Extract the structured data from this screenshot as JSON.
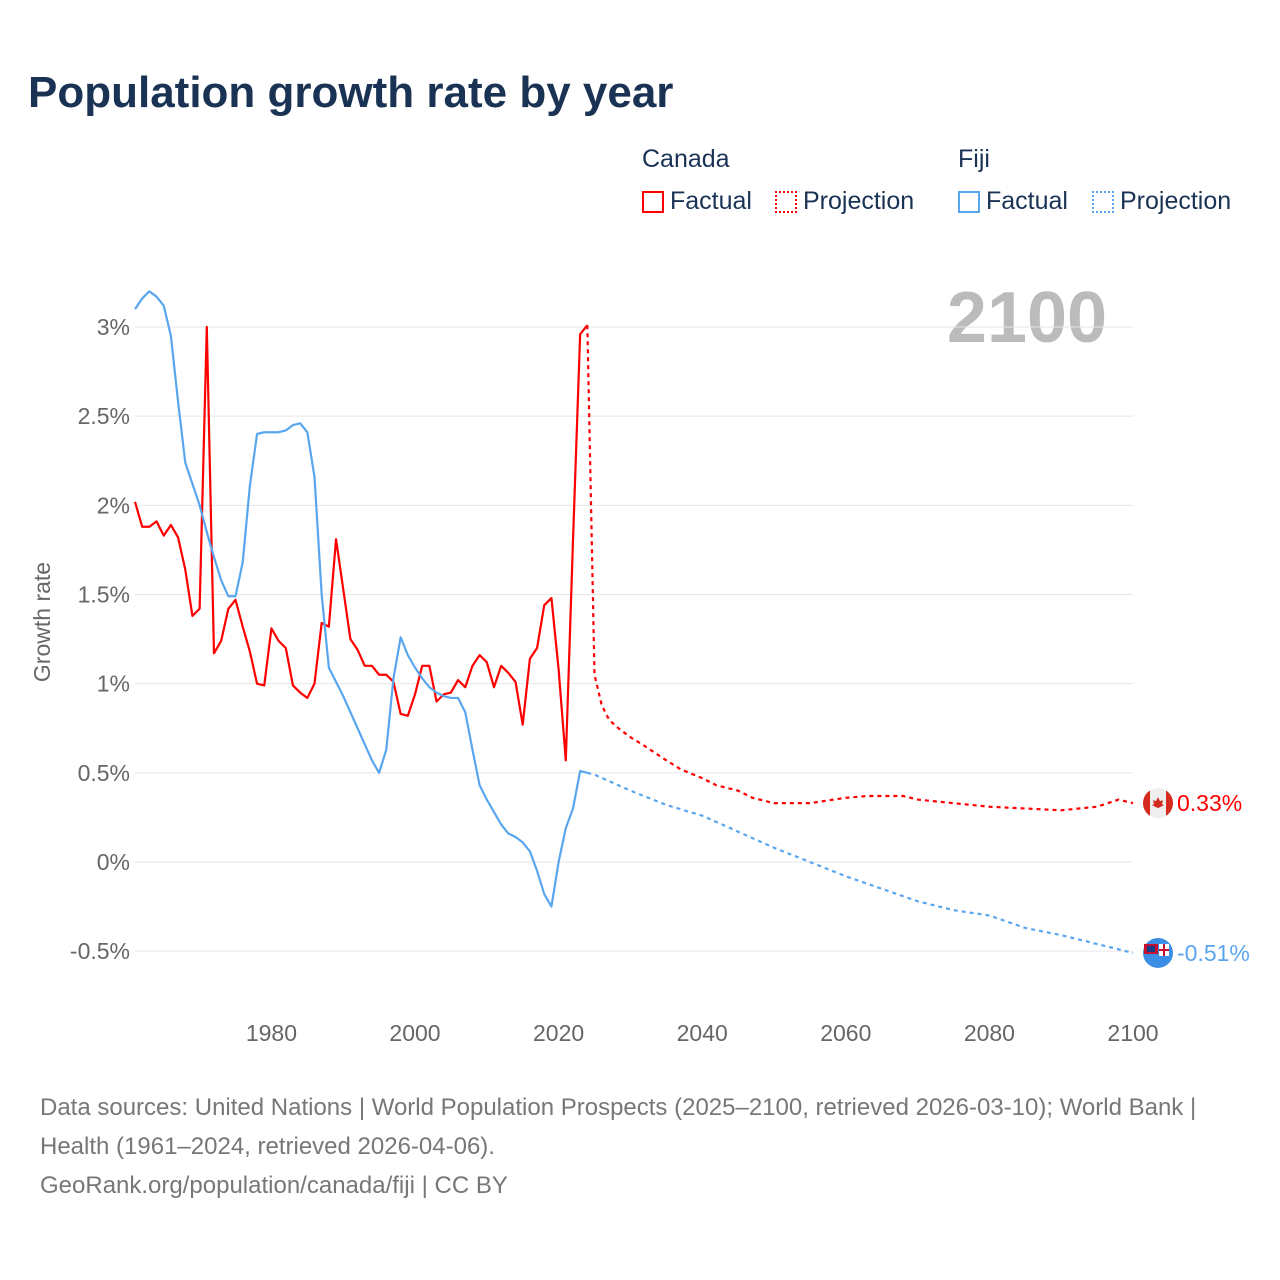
{
  "title": "Population growth rate by year",
  "legend": {
    "groups": [
      {
        "country": "Canada",
        "color": "#ff0000",
        "factual": "Factual",
        "projection": "Projection"
      },
      {
        "country": "Fiji",
        "color": "#5aa6ee",
        "factual": "Factual",
        "projection": "Projection"
      }
    ]
  },
  "footer": {
    "sources": "Data sources: United Nations | World Population Prospects (2025–2100, retrieved 2026-03-10); World Bank | Health (1961–2024, retrieved 2026-04-06).",
    "credit": "GeoRank.org/population/canada/fiji | CC BY"
  },
  "chart_data": {
    "type": "line",
    "ylabel": "Growth rate",
    "year_label": "2100",
    "xlim": [
      1961,
      2100
    ],
    "ylim": [
      -0.5,
      3
    ],
    "xticks": [
      1980,
      2000,
      2020,
      2040,
      2060,
      2080,
      2100
    ],
    "yticks": [
      -0.5,
      0,
      0.5,
      1,
      1.5,
      2,
      2.5,
      3
    ],
    "ytick_labels": [
      "-0.5%",
      "0%",
      "0.5%",
      "1%",
      "1.5%",
      "2%",
      "2.5%",
      "3%"
    ],
    "series": [
      {
        "name": "Canada",
        "color": "#ff0000",
        "end_label": "0.33%",
        "factual": {
          "x": [
            1961,
            1962,
            1963,
            1964,
            1965,
            1966,
            1967,
            1968,
            1969,
            1970,
            1971,
            1972,
            1973,
            1974,
            1975,
            1976,
            1977,
            1978,
            1979,
            1980,
            1981,
            1982,
            1983,
            1984,
            1985,
            1986,
            1987,
            1988,
            1989,
            1990,
            1991,
            1992,
            1993,
            1994,
            1995,
            1996,
            1997,
            1998,
            1999,
            2000,
            2001,
            2002,
            2003,
            2004,
            2005,
            2006,
            2007,
            2008,
            2009,
            2010,
            2011,
            2012,
            2013,
            2014,
            2015,
            2016,
            2017,
            2018,
            2019,
            2020,
            2021,
            2022,
            2023,
            2024
          ],
          "y": [
            2.02,
            1.88,
            1.88,
            1.91,
            1.83,
            1.89,
            1.82,
            1.64,
            1.38,
            1.42,
            3.0,
            1.17,
            1.24,
            1.42,
            1.47,
            1.32,
            1.18,
            1.0,
            0.99,
            1.31,
            1.24,
            1.2,
            0.99,
            0.95,
            0.92,
            1.0,
            1.34,
            1.32,
            1.81,
            1.53,
            1.25,
            1.19,
            1.1,
            1.1,
            1.05,
            1.05,
            1.01,
            0.83,
            0.82,
            0.94,
            1.1,
            1.1,
            0.9,
            0.94,
            0.95,
            1.02,
            0.98,
            1.1,
            1.16,
            1.12,
            0.98,
            1.1,
            1.06,
            1.01,
            0.77,
            1.14,
            1.2,
            1.44,
            1.48,
            1.08,
            0.57,
            1.8,
            2.96,
            3.01
          ]
        },
        "projection": {
          "x": [
            2024,
            2025,
            2026,
            2027,
            2028,
            2030,
            2032,
            2035,
            2037,
            2040,
            2042,
            2045,
            2047,
            2050,
            2055,
            2060,
            2063,
            2068,
            2070,
            2075,
            2080,
            2085,
            2090,
            2095,
            2098,
            2100
          ],
          "y": [
            3.01,
            1.05,
            0.88,
            0.8,
            0.76,
            0.7,
            0.65,
            0.57,
            0.52,
            0.47,
            0.43,
            0.4,
            0.36,
            0.33,
            0.33,
            0.36,
            0.37,
            0.37,
            0.35,
            0.33,
            0.31,
            0.3,
            0.29,
            0.31,
            0.35,
            0.33
          ]
        }
      },
      {
        "name": "Fiji",
        "color": "#5aa6ee",
        "end_label": "-0.51%",
        "factual": {
          "x": [
            1961,
            1962,
            1963,
            1964,
            1965,
            1966,
            1967,
            1968,
            1969,
            1970,
            1971,
            1972,
            1973,
            1974,
            1975,
            1976,
            1977,
            1978,
            1979,
            1980,
            1981,
            1982,
            1983,
            1984,
            1985,
            1986,
            1987,
            1988,
            1989,
            1990,
            1991,
            1992,
            1993,
            1994,
            1995,
            1996,
            1997,
            1998,
            1999,
            2000,
            2001,
            2002,
            2003,
            2004,
            2005,
            2006,
            2007,
            2008,
            2009,
            2010,
            2011,
            2012,
            2013,
            2014,
            2015,
            2016,
            2017,
            2018,
            2019,
            2020,
            2021,
            2022,
            2023,
            2024
          ],
          "y": [
            3.1,
            3.16,
            3.2,
            3.17,
            3.12,
            2.95,
            2.58,
            2.24,
            2.12,
            2.0,
            1.85,
            1.71,
            1.58,
            1.49,
            1.49,
            1.68,
            2.11,
            2.4,
            2.41,
            2.41,
            2.41,
            2.42,
            2.45,
            2.46,
            2.41,
            2.16,
            1.5,
            1.09,
            1.01,
            0.93,
            0.84,
            0.75,
            0.66,
            0.57,
            0.5,
            0.63,
            1.03,
            1.26,
            1.16,
            1.09,
            1.03,
            0.98,
            0.95,
            0.93,
            0.92,
            0.92,
            0.84,
            0.63,
            0.43,
            0.35,
            0.28,
            0.21,
            0.16,
            0.14,
            0.11,
            0.06,
            -0.05,
            -0.18,
            -0.25,
            0.0,
            0.19,
            0.3,
            0.51,
            0.5
          ]
        },
        "projection": {
          "x": [
            2024,
            2025,
            2030,
            2035,
            2040,
            2045,
            2050,
            2055,
            2060,
            2065,
            2070,
            2075,
            2080,
            2085,
            2090,
            2095,
            2100
          ],
          "y": [
            0.5,
            0.49,
            0.4,
            0.32,
            0.26,
            0.17,
            0.08,
            0.0,
            -0.08,
            -0.15,
            -0.22,
            -0.27,
            -0.3,
            -0.37,
            -0.41,
            -0.46,
            -0.51
          ]
        }
      }
    ]
  }
}
